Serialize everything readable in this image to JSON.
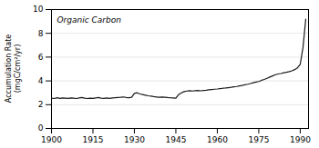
{
  "chart_data": {
    "type": "line",
    "ylabel": "Accumulation Rate\n(mgC/cm²/yr)",
    "annotation": "Organic Carbon",
    "x": [
      1900,
      1901,
      1902,
      1903,
      1904,
      1905,
      1906,
      1907,
      1908,
      1909,
      1910,
      1911,
      1912,
      1913,
      1914,
      1915,
      1916,
      1917,
      1918,
      1919,
      1920,
      1921,
      1922,
      1923,
      1924,
      1925,
      1926,
      1927,
      1928,
      1929,
      1930,
      1931,
      1932,
      1933,
      1934,
      1935,
      1936,
      1937,
      1938,
      1939,
      1940,
      1941,
      1942,
      1943,
      1944,
      1945,
      1946,
      1947,
      1948,
      1949,
      1950,
      1951,
      1952,
      1953,
      1954,
      1955,
      1956,
      1957,
      1958,
      1959,
      1960,
      1961,
      1962,
      1963,
      1964,
      1965,
      1966,
      1967,
      1968,
      1969,
      1970,
      1971,
      1972,
      1973,
      1974,
      1975,
      1976,
      1977,
      1978,
      1979,
      1980,
      1981,
      1982,
      1983,
      1984,
      1985,
      1986,
      1987,
      1988,
      1989,
      1990,
      1991,
      1992
    ],
    "values": [
      2.55,
      2.52,
      2.58,
      2.53,
      2.57,
      2.55,
      2.53,
      2.57,
      2.55,
      2.52,
      2.56,
      2.6,
      2.55,
      2.52,
      2.55,
      2.53,
      2.57,
      2.6,
      2.55,
      2.53,
      2.57,
      2.53,
      2.56,
      2.58,
      2.6,
      2.62,
      2.65,
      2.6,
      2.58,
      2.62,
      2.95,
      3.0,
      2.9,
      2.85,
      2.8,
      2.75,
      2.72,
      2.68,
      2.65,
      2.62,
      2.65,
      2.63,
      2.6,
      2.58,
      2.57,
      2.55,
      2.85,
      3.0,
      3.1,
      3.15,
      3.18,
      3.15,
      3.18,
      3.2,
      3.17,
      3.2,
      3.22,
      3.25,
      3.28,
      3.3,
      3.32,
      3.35,
      3.38,
      3.4,
      3.43,
      3.46,
      3.5,
      3.53,
      3.58,
      3.62,
      3.68,
      3.72,
      3.78,
      3.85,
      3.9,
      3.95,
      4.05,
      4.12,
      4.22,
      4.32,
      4.42,
      4.52,
      4.58,
      4.62,
      4.68,
      4.72,
      4.78,
      4.85,
      4.95,
      5.1,
      5.4,
      6.8,
      9.2
    ],
    "color": "#1a1a1a",
    "xlim": [
      1900,
      1993
    ],
    "xticks": [
      1900,
      1915,
      1930,
      1945,
      1960,
      1975,
      1990
    ],
    "ylim": [
      0,
      10
    ],
    "yticks": [
      0,
      2,
      4,
      6,
      8,
      10
    ],
    "grid": true
  }
}
